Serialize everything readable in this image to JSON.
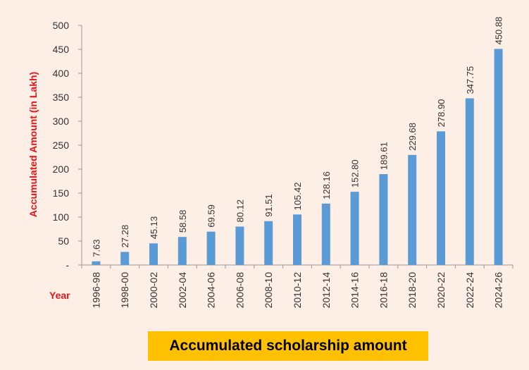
{
  "chart_data": {
    "type": "bar",
    "title": "",
    "caption": "Accumulated scholarship amount",
    "xlabel": "Year",
    "ylabel": "Accumulated Amount (in Lakh)",
    "ylim": [
      0,
      500
    ],
    "yticks": [
      "-",
      "50",
      "100",
      "150",
      "200",
      "250",
      "300",
      "350",
      "400",
      "450",
      "500"
    ],
    "categories": [
      "1996-98",
      "1998-00",
      "2000-02",
      "2002-04",
      "2004-06",
      "2006-08",
      "2008-10",
      "2010-12",
      "2012-14",
      "2014-16",
      "2016-18",
      "2018-20",
      "2020-22",
      "2022-24",
      "2024-26"
    ],
    "values": [
      7.63,
      27.28,
      45.13,
      58.58,
      69.59,
      80.12,
      91.51,
      105.42,
      128.16,
      152.8,
      189.61,
      229.68,
      278.9,
      347.75,
      450.88
    ],
    "value_labels": [
      "7.63",
      "27.28",
      "45.13",
      "58.58",
      "69.59",
      "80.12",
      "91.51",
      "105.42",
      "128.16",
      "152.80",
      "189.61",
      "229.68",
      "278.90",
      "347.75",
      "450.88"
    ],
    "bar_color": "#5b9bd5",
    "grid": false
  }
}
